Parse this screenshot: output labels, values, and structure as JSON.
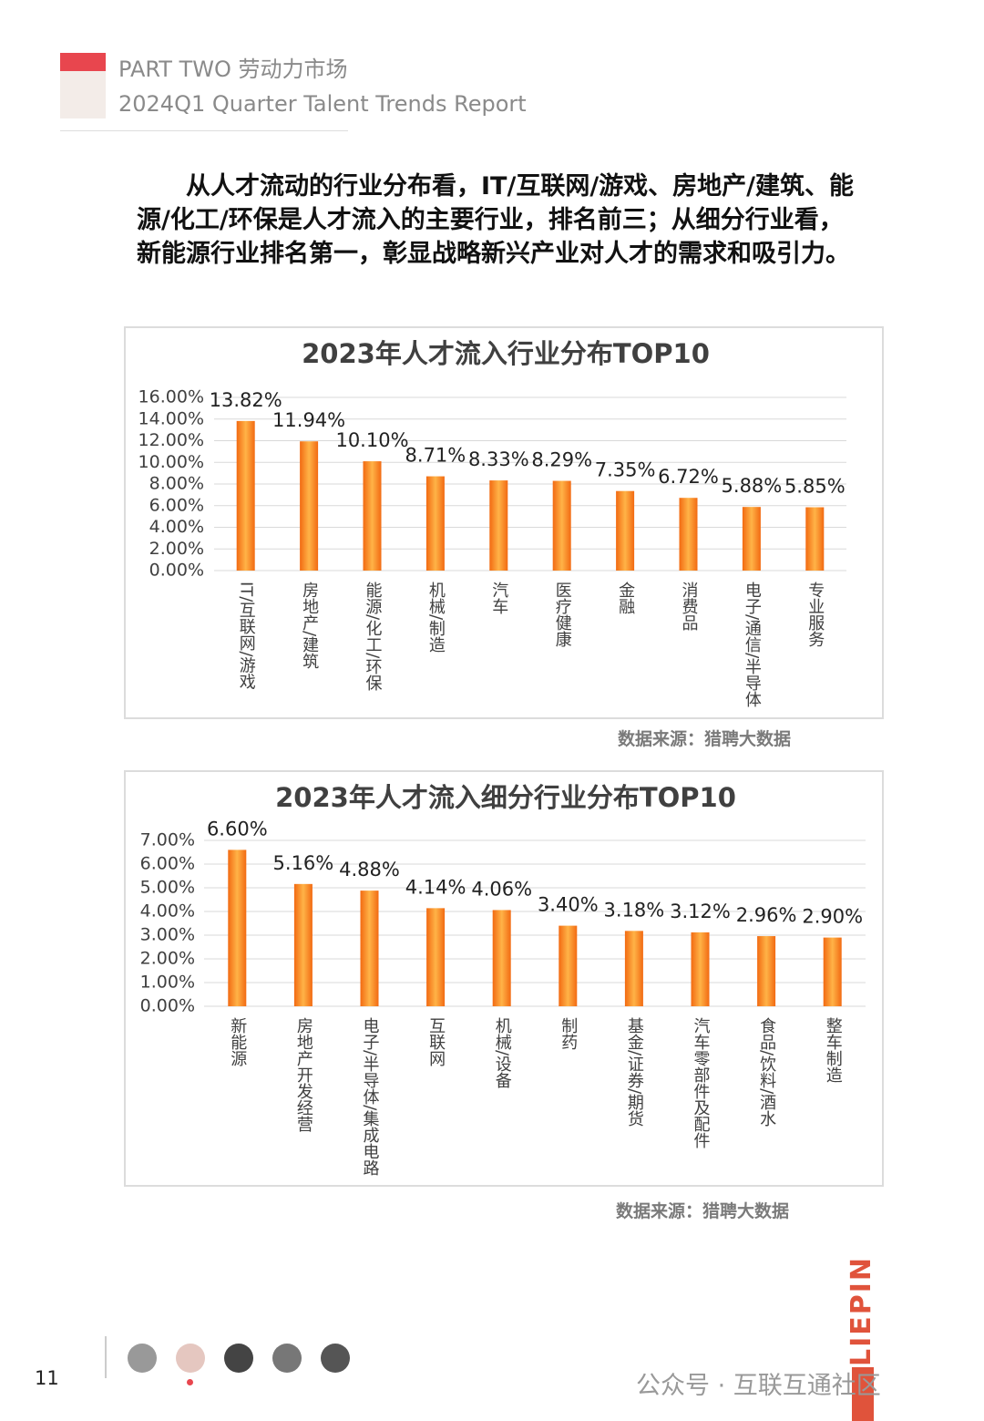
{
  "header": {
    "title": "PART TWO 劳动力市场",
    "subtitle": "2024Q1 Quarter Talent Trends Report"
  },
  "paragraph": "从人才流动的行业分布看，IT/互联网/游戏、房地产/建筑、能源/化工/环保是人才流入的主要行业，排名前三；从细分行业看，新能源行业排名第一，彰显战略新兴产业对人才的需求和吸引力。",
  "chart_data": [
    {
      "type": "bar",
      "title": "2023年人才流入行业分布TOP10",
      "categories": [
        "IT/互联网/游戏",
        "房地产/建筑",
        "能源/化工/环保",
        "机械/制造",
        "汽车",
        "医疗健康",
        "金融",
        "消费品",
        "电子/通信/半导体",
        "专业服务"
      ],
      "values": [
        13.82,
        11.94,
        10.1,
        8.71,
        8.33,
        8.29,
        7.35,
        6.72,
        5.88,
        5.85
      ],
      "value_labels": [
        "13.82%",
        "11.94%",
        "10.10%",
        "8.71%",
        "8.33%",
        "8.29%",
        "7.35%",
        "6.72%",
        "5.88%",
        "5.85%"
      ],
      "color": "#f26a12",
      "grid": true,
      "ylim": [
        0,
        16
      ],
      "yticks": [
        {
          "value": 0,
          "label": "0.00%"
        },
        {
          "value": 2,
          "label": "2.00%"
        },
        {
          "value": 4,
          "label": "4.00%"
        },
        {
          "value": 6,
          "label": "6.00%"
        },
        {
          "value": 8,
          "label": "8.00%"
        },
        {
          "value": 10,
          "label": "10.00%"
        },
        {
          "value": 12,
          "label": "12.00%"
        },
        {
          "value": 14,
          "label": "14.00%"
        },
        {
          "value": 16,
          "label": "16.00%"
        }
      ],
      "source": "数据来源：猎聘大数据"
    },
    {
      "type": "bar",
      "title": "2023年人才流入细分行业分布TOP10",
      "categories": [
        "新能源",
        "房地产开发经营",
        "电子/半导体/集成电路",
        "互联网",
        "机械/设备",
        "制药",
        "基金/证券/期货",
        "汽车零部件及配件",
        "食品/饮料/酒水",
        "整车制造"
      ],
      "values": [
        6.6,
        5.16,
        4.88,
        4.14,
        4.06,
        3.4,
        3.18,
        3.12,
        2.96,
        2.9
      ],
      "value_labels": [
        "6.60%",
        "5.16%",
        "4.88%",
        "4.14%",
        "4.06%",
        "3.40%",
        "3.18%",
        "3.12%",
        "2.96%",
        "2.90%"
      ],
      "color": "#f26a12",
      "grid": true,
      "ylim": [
        0,
        7
      ],
      "yticks": [
        {
          "value": 0,
          "label": "0.00%"
        },
        {
          "value": 1,
          "label": "1.00%"
        },
        {
          "value": 2,
          "label": "2.00%"
        },
        {
          "value": 3,
          "label": "3.00%"
        },
        {
          "value": 4,
          "label": "4.00%"
        },
        {
          "value": 5,
          "label": "5.00%"
        },
        {
          "value": 6,
          "label": "6.00%"
        },
        {
          "value": 7,
          "label": "7.00%"
        }
      ],
      "source": "数据来源：猎聘大数据"
    }
  ],
  "footer": {
    "page": "11",
    "watermark": "公众号 · 互联互通社区",
    "brand": "LIEPIN"
  }
}
